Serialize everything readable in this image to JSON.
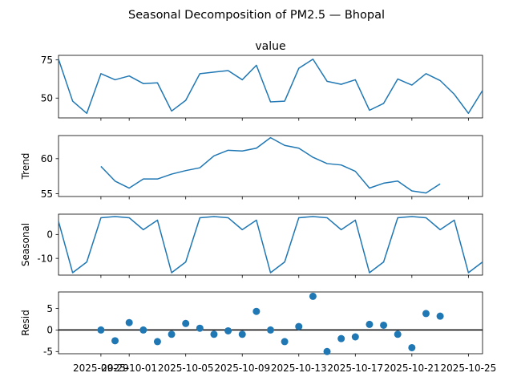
{
  "chart_data": {
    "type": "line",
    "title": "Seasonal Decomposition of PM2.5 — Bhopal",
    "colors": {
      "series": "#1f77b4",
      "axes": "#000000",
      "background": "#ffffff"
    },
    "x": [
      "2025-09-26",
      "2025-09-27",
      "2025-09-28",
      "2025-09-29",
      "2025-09-30",
      "2025-10-01",
      "2025-10-02",
      "2025-10-03",
      "2025-10-04",
      "2025-10-05",
      "2025-10-06",
      "2025-10-07",
      "2025-10-08",
      "2025-10-09",
      "2025-10-10",
      "2025-10-11",
      "2025-10-12",
      "2025-10-13",
      "2025-10-14",
      "2025-10-15",
      "2025-10-16",
      "2025-10-17",
      "2025-10-18",
      "2025-10-19",
      "2025-10-20",
      "2025-10-21",
      "2025-10-22",
      "2025-10-23",
      "2025-10-24",
      "2025-10-25",
      "2025-10-26"
    ],
    "xticks": [
      "2025-09-29",
      "2025-10-01",
      "2025-10-05",
      "2025-10-09",
      "2025-10-13",
      "2025-10-17",
      "2025-10-21",
      "2025-10-25"
    ],
    "panels": [
      {
        "key": "observed",
        "title": "value",
        "ylabel": "",
        "kind": "line",
        "ylim": [
          37,
          78
        ],
        "yticks": [
          50,
          75
        ],
        "values": [
          75.5,
          48.0,
          40.0,
          66.0,
          62.0,
          64.5,
          59.5,
          60.0,
          41.5,
          48.5,
          66.0,
          67.0,
          68.0,
          62.0,
          71.5,
          47.5,
          48.0,
          69.5,
          75.5,
          61.0,
          59.0,
          62.0,
          42.0,
          46.5,
          62.5,
          58.5,
          66.0,
          61.5,
          52.5,
          40.0,
          55.0
        ]
      },
      {
        "key": "trend",
        "title": "",
        "ylabel": "Trend",
        "kind": "line",
        "ylim": [
          54.6,
          63.3
        ],
        "yticks": [
          55,
          60
        ],
        "values": [
          null,
          null,
          null,
          58.9,
          56.8,
          55.8,
          57.1,
          57.1,
          57.8,
          58.3,
          58.7,
          60.4,
          61.2,
          61.1,
          61.5,
          63.0,
          61.9,
          61.5,
          60.2,
          59.3,
          59.1,
          58.2,
          55.8,
          56.5,
          56.8,
          55.4,
          55.1,
          56.4,
          null,
          null,
          null
        ]
      },
      {
        "key": "seasonal",
        "title": "",
        "ylabel": "Seasonal",
        "kind": "line",
        "ylim": [
          -17.0,
          8.5
        ],
        "yticks": [
          -10,
          0
        ],
        "values": [
          5.5,
          -16.0,
          -11.5,
          7.0,
          7.5,
          7.0,
          2.0,
          6.0,
          -16.0,
          -11.5,
          7.0,
          7.5,
          7.0,
          2.0,
          6.0,
          -16.0,
          -11.5,
          7.0,
          7.5,
          7.0,
          2.0,
          6.0,
          -16.0,
          -11.5,
          7.0,
          7.5,
          7.0,
          2.0,
          6.0,
          -16.0,
          -11.5
        ]
      },
      {
        "key": "resid",
        "title": "",
        "ylabel": "Resid",
        "kind": "scatter",
        "ylim": [
          -5.5,
          8.8
        ],
        "yticks": [
          -5,
          0,
          5
        ],
        "values": [
          null,
          null,
          null,
          0.0,
          -2.5,
          1.7,
          0.0,
          -2.7,
          -1.0,
          1.5,
          0.4,
          -1.0,
          -0.2,
          -1.0,
          4.3,
          0.0,
          -2.7,
          0.8,
          7.8,
          -5.0,
          -2.0,
          -1.6,
          1.3,
          1.1,
          -1.0,
          -4.1,
          3.8,
          3.2,
          null,
          null,
          null
        ]
      }
    ]
  }
}
